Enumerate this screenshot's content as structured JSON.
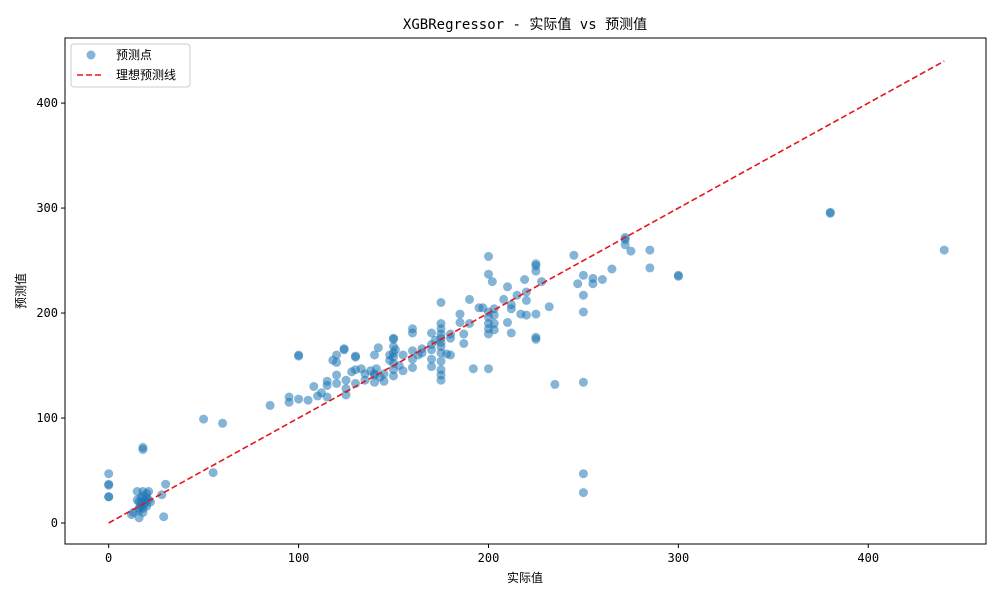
{
  "chart_data": {
    "type": "scatter",
    "title": "XGBRegressor - 实际值 vs 预测值",
    "xlabel": "实际值",
    "ylabel": "预测值",
    "xlim": [
      -23,
      462
    ],
    "ylim": [
      -20,
      462
    ],
    "xticks": [
      0,
      100,
      200,
      300,
      400
    ],
    "yticks": [
      0,
      100,
      200,
      300,
      400
    ],
    "grid": false,
    "legend_position": "top-left",
    "colors": {
      "points": "#1f77b4",
      "ideal_line": "#e8141c"
    },
    "series": [
      {
        "name": "预测点",
        "kind": "scatter",
        "alpha": 0.55,
        "points": [
          [
            0,
            47
          ],
          [
            0,
            36
          ],
          [
            0,
            25
          ],
          [
            0,
            37
          ],
          [
            0,
            25
          ],
          [
            12,
            8
          ],
          [
            13,
            10
          ],
          [
            15,
            30
          ],
          [
            15,
            22
          ],
          [
            16,
            5
          ],
          [
            16,
            14
          ],
          [
            16,
            20
          ],
          [
            16,
            12
          ],
          [
            17,
            24
          ],
          [
            17,
            18
          ],
          [
            17,
            16
          ],
          [
            18,
            70
          ],
          [
            18,
            72
          ],
          [
            18,
            30
          ],
          [
            18,
            26
          ],
          [
            18,
            10
          ],
          [
            18,
            14
          ],
          [
            19,
            22
          ],
          [
            19,
            18
          ],
          [
            19,
            20
          ],
          [
            20,
            24
          ],
          [
            20,
            28
          ],
          [
            20,
            16
          ],
          [
            21,
            30
          ],
          [
            21,
            22
          ],
          [
            22,
            20
          ],
          [
            28,
            27
          ],
          [
            29,
            6
          ],
          [
            30,
            37
          ],
          [
            50,
            99
          ],
          [
            55,
            48
          ],
          [
            60,
            95
          ],
          [
            85,
            112
          ],
          [
            95,
            115
          ],
          [
            95,
            120
          ],
          [
            100,
            160
          ],
          [
            100,
            159
          ],
          [
            100,
            118
          ],
          [
            105,
            117
          ],
          [
            108,
            130
          ],
          [
            110,
            121
          ],
          [
            112,
            124
          ],
          [
            115,
            131
          ],
          [
            115,
            135
          ],
          [
            115,
            120
          ],
          [
            118,
            155
          ],
          [
            120,
            160
          ],
          [
            120,
            153
          ],
          [
            120,
            141
          ],
          [
            120,
            133
          ],
          [
            124,
            165
          ],
          [
            124,
            166
          ],
          [
            125,
            122
          ],
          [
            125,
            128
          ],
          [
            125,
            136
          ],
          [
            128,
            144
          ],
          [
            130,
            158
          ],
          [
            130,
            159
          ],
          [
            130,
            146
          ],
          [
            130,
            133
          ],
          [
            133,
            147
          ],
          [
            135,
            136
          ],
          [
            135,
            142
          ],
          [
            138,
            145
          ],
          [
            140,
            142
          ],
          [
            140,
            160
          ],
          [
            140,
            134
          ],
          [
            140,
            141
          ],
          [
            141,
            147
          ],
          [
            142,
            167
          ],
          [
            143,
            139
          ],
          [
            145,
            135
          ],
          [
            145,
            142
          ],
          [
            148,
            160
          ],
          [
            148,
            155
          ],
          [
            150,
            176
          ],
          [
            150,
            175
          ],
          [
            150,
            168
          ],
          [
            150,
            162
          ],
          [
            150,
            158
          ],
          [
            150,
            152
          ],
          [
            150,
            146
          ],
          [
            150,
            140
          ],
          [
            151,
            165
          ],
          [
            153,
            150
          ],
          [
            155,
            160
          ],
          [
            155,
            145
          ],
          [
            160,
            185
          ],
          [
            160,
            181
          ],
          [
            160,
            164
          ],
          [
            160,
            156
          ],
          [
            160,
            148
          ],
          [
            163,
            160
          ],
          [
            165,
            166
          ],
          [
            165,
            162
          ],
          [
            170,
            181
          ],
          [
            170,
            170
          ],
          [
            170,
            165
          ],
          [
            170,
            156
          ],
          [
            170,
            149
          ],
          [
            172,
            174
          ],
          [
            175,
            210
          ],
          [
            175,
            190
          ],
          [
            175,
            185
          ],
          [
            175,
            180
          ],
          [
            175,
            176
          ],
          [
            175,
            172
          ],
          [
            175,
            168
          ],
          [
            175,
            162
          ],
          [
            175,
            154
          ],
          [
            175,
            146
          ],
          [
            175,
            141
          ],
          [
            175,
            136
          ],
          [
            178,
            161
          ],
          [
            180,
            180
          ],
          [
            180,
            176
          ],
          [
            180,
            160
          ],
          [
            185,
            199
          ],
          [
            185,
            191
          ],
          [
            187,
            171
          ],
          [
            187,
            180
          ],
          [
            190,
            213
          ],
          [
            190,
            190
          ],
          [
            192,
            147
          ],
          [
            195,
            205
          ],
          [
            197,
            205
          ],
          [
            200,
            254
          ],
          [
            200,
            237
          ],
          [
            200,
            201
          ],
          [
            200,
            196
          ],
          [
            200,
            190
          ],
          [
            200,
            185
          ],
          [
            200,
            180
          ],
          [
            200,
            147
          ],
          [
            202,
            230
          ],
          [
            203,
            204
          ],
          [
            203,
            198
          ],
          [
            203,
            190
          ],
          [
            203,
            184
          ],
          [
            208,
            213
          ],
          [
            210,
            225
          ],
          [
            210,
            191
          ],
          [
            212,
            208
          ],
          [
            212,
            204
          ],
          [
            212,
            181
          ],
          [
            215,
            217
          ],
          [
            217,
            199
          ],
          [
            219,
            232
          ],
          [
            220,
            220
          ],
          [
            220,
            212
          ],
          [
            220,
            198
          ],
          [
            225,
            247
          ],
          [
            225,
            245
          ],
          [
            225,
            240
          ],
          [
            225,
            199
          ],
          [
            225,
            177
          ],
          [
            225,
            175
          ],
          [
            228,
            230
          ],
          [
            232,
            206
          ],
          [
            235,
            132
          ],
          [
            245,
            255
          ],
          [
            247,
            228
          ],
          [
            250,
            236
          ],
          [
            250,
            217
          ],
          [
            250,
            201
          ],
          [
            250,
            134
          ],
          [
            250,
            47
          ],
          [
            250,
            29
          ],
          [
            255,
            233
          ],
          [
            255,
            228
          ],
          [
            260,
            232
          ],
          [
            265,
            242
          ],
          [
            272,
            272
          ],
          [
            272,
            270
          ],
          [
            272,
            265
          ],
          [
            275,
            259
          ],
          [
            285,
            260
          ],
          [
            285,
            243
          ],
          [
            300,
            235
          ],
          [
            300,
            236
          ],
          [
            380,
            295
          ],
          [
            380,
            296
          ],
          [
            440,
            260
          ]
        ]
      },
      {
        "name": "理想预测线",
        "kind": "line",
        "style": "dashed",
        "x": [
          0,
          440
        ],
        "y": [
          0,
          440
        ]
      }
    ]
  }
}
